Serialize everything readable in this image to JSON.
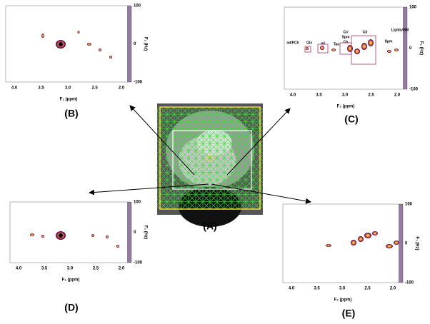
{
  "panels": {
    "A": {
      "label": "(A)"
    },
    "B": {
      "label": "(B)",
      "x_ticks": [
        "4.0",
        "3.5",
        "3.0",
        "2.5",
        "2.0"
      ],
      "y_ticks": [
        "100",
        "0",
        "-100"
      ],
      "x_axis": "F₂ (ppm)",
      "y_axis": "F₁ (Hz)"
    },
    "C": {
      "label": "(C)",
      "x_ticks": [
        "4.0",
        "3.5",
        "3.0",
        "2.5",
        "2.0"
      ],
      "y_ticks": [
        "100",
        "0",
        "-100"
      ],
      "x_axis": "F₂ (ppm)",
      "y_axis": "F₁ (Hz)",
      "annotations": [
        "ml/PCh",
        "Glx",
        "ml",
        "Tau",
        "Cr/",
        "Spm",
        "Ch",
        "Cit",
        "Spm",
        "Lipids/MM"
      ]
    },
    "D": {
      "label": "(D)",
      "x_ticks": [
        "4.0",
        "3.5",
        "3.0",
        "2.5",
        "2.0"
      ],
      "y_ticks": [
        "100",
        "0",
        "-100"
      ],
      "x_axis": "F₂ (ppm)",
      "y_axis": "F₁ (Hz)"
    },
    "E": {
      "label": "(E)",
      "x_ticks": [
        "4.0",
        "3.5",
        "3.0",
        "2.5",
        "2.0"
      ],
      "y_ticks": [
        "100",
        "0",
        "-100"
      ],
      "x_axis": "F₂ (ppm)",
      "y_axis": "F₁ (Hz)"
    }
  }
}
